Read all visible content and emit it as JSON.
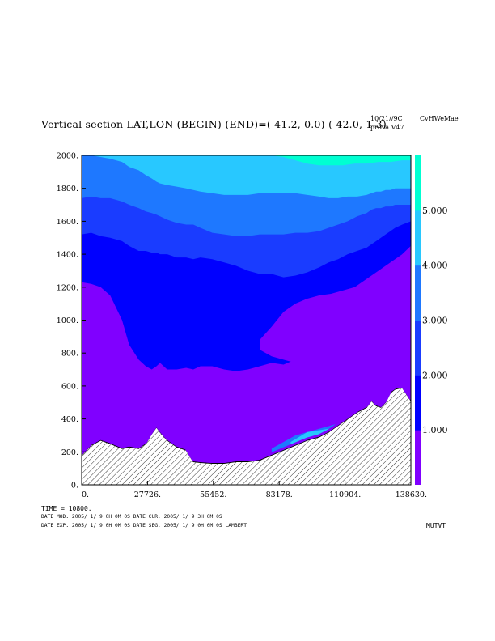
{
  "header": {
    "title": "Vertical section LAT,LON (BEGIN)-(END)=( 41.2,  0.0)-( 42.0,  1.3)",
    "date_tag": "10/21//9C",
    "model_tag": "CvHWeMae",
    "run_tag": "prova V47"
  },
  "footer": {
    "time_line": "TIME =    10800.",
    "line1": "DATE MOD. 2005/ 1/ 9   0H 0M 0S   DATE CUR. 2005/ 1/ 9   3H 0M 0S",
    "line2": "DATE EXP. 2005/ 1/ 9   0H 0M 0S   DATE SEG. 2005/ 1/ 9   0H 0M 0S   LAMBERT",
    "field_name": "MUTVT"
  },
  "colors": {
    "levels": [
      "#8000ff",
      "#0000ff",
      "#1a3cff",
      "#1e78ff",
      "#28c8ff",
      "#00ffd2",
      "#00ff96"
    ],
    "terrain_hatch": "#000000"
  },
  "chart_data": {
    "type": "contour",
    "title": "",
    "xlabel": "",
    "ylabel": "",
    "xlim": [
      0,
      138630
    ],
    "ylim": [
      0,
      2000
    ],
    "x_ticks": [
      "0.",
      "27726.",
      "55452.",
      "83178.",
      "110904.",
      "138630."
    ],
    "y_ticks": [
      "0.",
      "200.",
      "400.",
      "600.",
      "800.",
      "1000.",
      "1200.",
      "1400.",
      "1600.",
      "1800.",
      "2000."
    ],
    "x_tick_values": [
      0,
      27726,
      55452,
      83178,
      110904,
      138630
    ],
    "y_tick_values": [
      0,
      200,
      400,
      600,
      800,
      1000,
      1200,
      1400,
      1600,
      1800,
      2000
    ],
    "colorbar": {
      "labels": [
        "1.000",
        "2.000",
        "3.000",
        "4.000",
        "5.000"
      ],
      "values": [
        1,
        2,
        3,
        4,
        5
      ],
      "range": [
        0,
        6
      ]
    },
    "terrain": {
      "x": [
        0,
        4000,
        8000,
        12000,
        17000,
        20000,
        24000,
        27000,
        29500,
        31500,
        33000,
        36000,
        40000,
        44000,
        47000,
        50000,
        55000,
        60000,
        65000,
        70000,
        75000,
        80000,
        85000,
        90000,
        95000,
        100000,
        104000,
        108000,
        112000,
        116000,
        120000,
        122000,
        124000,
        126000,
        128000,
        130000,
        132000,
        135000,
        138630
      ],
      "y": [
        180,
        240,
        270,
        250,
        220,
        230,
        220,
        250,
        310,
        350,
        320,
        270,
        230,
        210,
        140,
        135,
        130,
        130,
        140,
        140,
        150,
        180,
        210,
        240,
        270,
        290,
        320,
        360,
        400,
        440,
        470,
        510,
        480,
        470,
        500,
        560,
        580,
        590,
        510
      ]
    },
    "contour_bands": [
      {
        "level_min": 0,
        "level_max": 1,
        "top_y": [
          1230,
          1220,
          1200,
          1150,
          1000,
          850,
          760,
          720,
          700,
          720,
          740,
          700,
          700,
          710,
          700,
          720,
          720,
          700,
          690,
          700,
          720,
          740,
          730,
          760,
          800,
          820,
          850,
          900,
          940,
          980,
          1050,
          1100,
          1150,
          1200,
          1250,
          1300,
          1350,
          1400,
          1450
        ]
      },
      {
        "level_min": 1,
        "level_max": 2,
        "top_y": [
          1520,
          1530,
          1510,
          1500,
          1480,
          1450,
          1420,
          1420,
          1410,
          1410,
          1400,
          1400,
          1380,
          1380,
          1370,
          1380,
          1370,
          1350,
          1330,
          1300,
          1280,
          1280,
          1260,
          1270,
          1290,
          1320,
          1350,
          1370,
          1400,
          1420,
          1440,
          1460,
          1480,
          1500,
          1520,
          1540,
          1560,
          1580,
          1600
        ]
      },
      {
        "level_min": 2,
        "level_max": 3,
        "top_y": [
          1740,
          1750,
          1740,
          1740,
          1720,
          1700,
          1680,
          1660,
          1650,
          1640,
          1630,
          1610,
          1590,
          1580,
          1580,
          1560,
          1530,
          1520,
          1510,
          1510,
          1520,
          1520,
          1520,
          1530,
          1530,
          1540,
          1560,
          1580,
          1600,
          1630,
          1650,
          1670,
          1680,
          1680,
          1690,
          1690,
          1700,
          1700,
          1700
        ]
      },
      {
        "level_min": 3,
        "level_max": 4,
        "top_y": [
          2000,
          2000,
          1990,
          1980,
          1960,
          1930,
          1910,
          1880,
          1860,
          1840,
          1830,
          1820,
          1810,
          1800,
          1790,
          1780,
          1770,
          1760,
          1760,
          1760,
          1770,
          1770,
          1770,
          1770,
          1760,
          1750,
          1740,
          1740,
          1750,
          1750,
          1760,
          1770,
          1780,
          1780,
          1790,
          1790,
          1800,
          1800,
          1800
        ]
      },
      {
        "level_min": 4,
        "level_max": 5,
        "top_y": [
          2000,
          2000,
          2000,
          2000,
          2000,
          2000,
          2000,
          2000,
          2000,
          2000,
          2000,
          2000,
          2000,
          2000,
          2000,
          2000,
          2000,
          2000,
          2000,
          2000,
          2000,
          2000,
          2000,
          2000,
          2000,
          2000,
          2000,
          2000,
          2000,
          2000,
          2000,
          2000,
          2000,
          2000,
          2000,
          2000,
          2000,
          2000,
          2000
        ]
      },
      {
        "level_min": 5,
        "level_max": 6,
        "top_y": [
          2000,
          2000,
          2000,
          2000,
          2000,
          2000,
          2000,
          2000,
          2000,
          2000,
          2000,
          2000,
          2000,
          2000,
          2000,
          2000,
          2000,
          2000,
          2000,
          2000,
          2000,
          2000,
          2000,
          2000,
          2000,
          2000,
          2000,
          2000,
          2000,
          2000,
          2000,
          2000,
          2000,
          2000,
          2000,
          2000,
          2000,
          2000,
          2000
        ]
      }
    ],
    "top_patch": {
      "level_min": 5,
      "level_max": 6,
      "x": [
        80000,
        85000,
        90000,
        95000,
        100000,
        105000,
        110000,
        115000,
        120000,
        125000,
        130000,
        135000,
        138630
      ],
      "bottom_y": [
        2000,
        1990,
        1970,
        1950,
        1940,
        1940,
        1940,
        1950,
        1950,
        1960,
        1960,
        1970,
        1970
      ]
    },
    "mid_patch": {
      "level_min": 0,
      "level_max": 1,
      "x": [
        75000,
        80000,
        85000,
        90000,
        95000,
        100000,
        105000,
        110000,
        115000,
        120000,
        125000,
        130000,
        135000,
        138630
      ],
      "top_y": [
        880,
        960,
        1050,
        1100,
        1130,
        1150,
        1160,
        1180,
        1200,
        1250,
        1300,
        1350,
        1400,
        1450
      ],
      "bottom_y": [
        820,
        780,
        760,
        740,
        760,
        790,
        800,
        820,
        800,
        800,
        760,
        700,
        720,
        760
      ]
    }
  }
}
